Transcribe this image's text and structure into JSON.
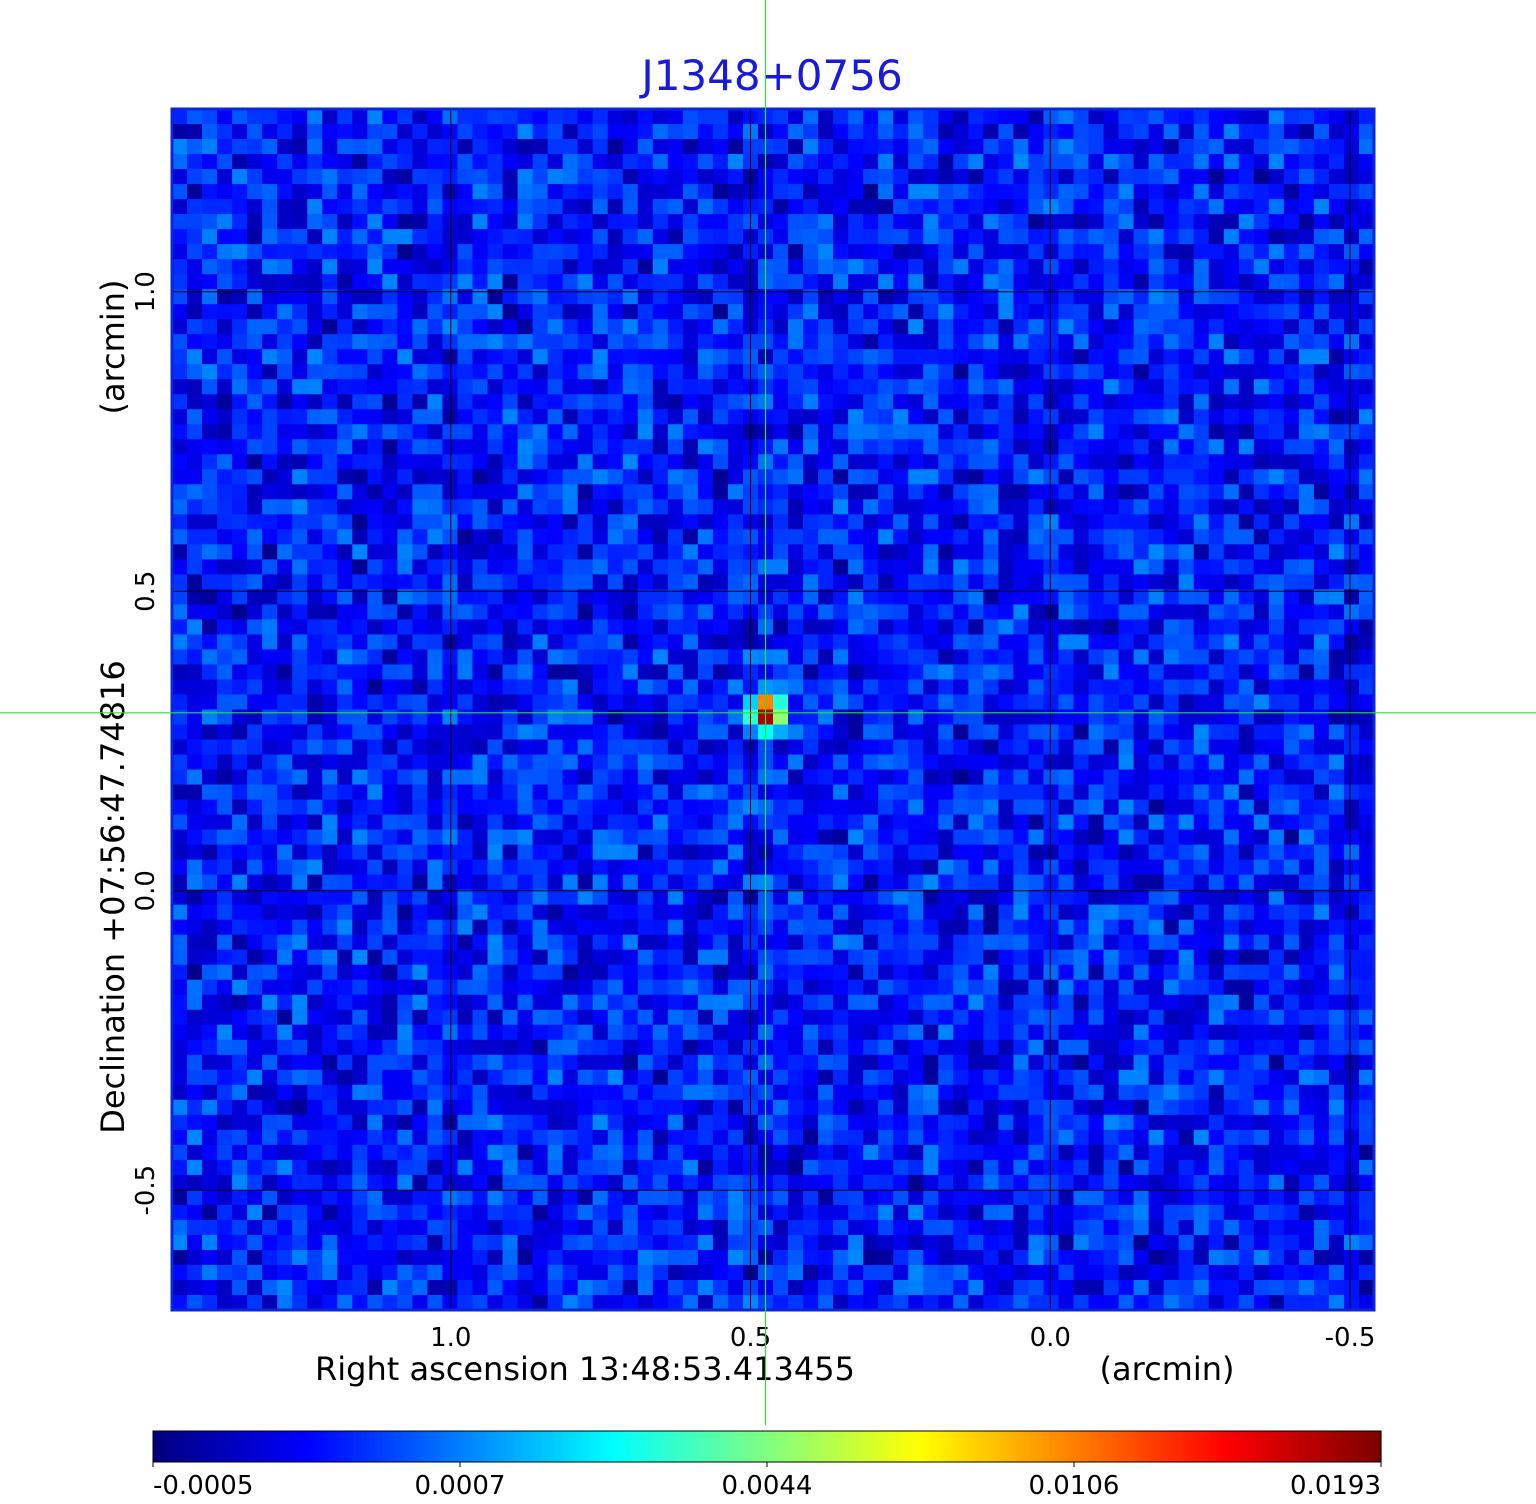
{
  "chart_data": {
    "type": "heatmap",
    "title": "J1348+0756",
    "xlabel": "Right ascension  13:48:53.413455",
    "xunit": "(arcmin)",
    "ylabel": "Declination  +07:56:47.74816",
    "yunit": "(arcmin)",
    "x_ticks": [
      "1.0",
      "0.5",
      "0.0",
      "-0.5"
    ],
    "x_tick_values": [
      1.0,
      0.5,
      0.0,
      -0.5
    ],
    "y_ticks": [
      "1.0",
      "0.5",
      "0.0",
      "-0.5"
    ],
    "y_tick_values": [
      1.0,
      0.5,
      0.0,
      -0.5
    ],
    "xlim": [
      1.465,
      -0.54
    ],
    "ylim": [
      -0.7,
      1.305
    ],
    "grid": true,
    "colormap": "jet",
    "colorbar": {
      "labels": [
        "-0.0005",
        "0.0007",
        "0.0044",
        "0.0106",
        "0.0193"
      ],
      "values": [
        -0.0005,
        0.0007,
        0.0044,
        0.0106,
        0.0193
      ]
    },
    "background_level": 0.0002,
    "source": {
      "x_arcmin": 0.473,
      "y_arcmin": 0.297,
      "peak": 0.0193
    },
    "crosshair": {
      "x_arcmin": 0.475,
      "y_arcmin": 0.297
    }
  },
  "colors": {
    "title": "#1a1adc",
    "crosshair": "#33dd33",
    "grid": "#000000",
    "frame": "#0a28d8"
  }
}
